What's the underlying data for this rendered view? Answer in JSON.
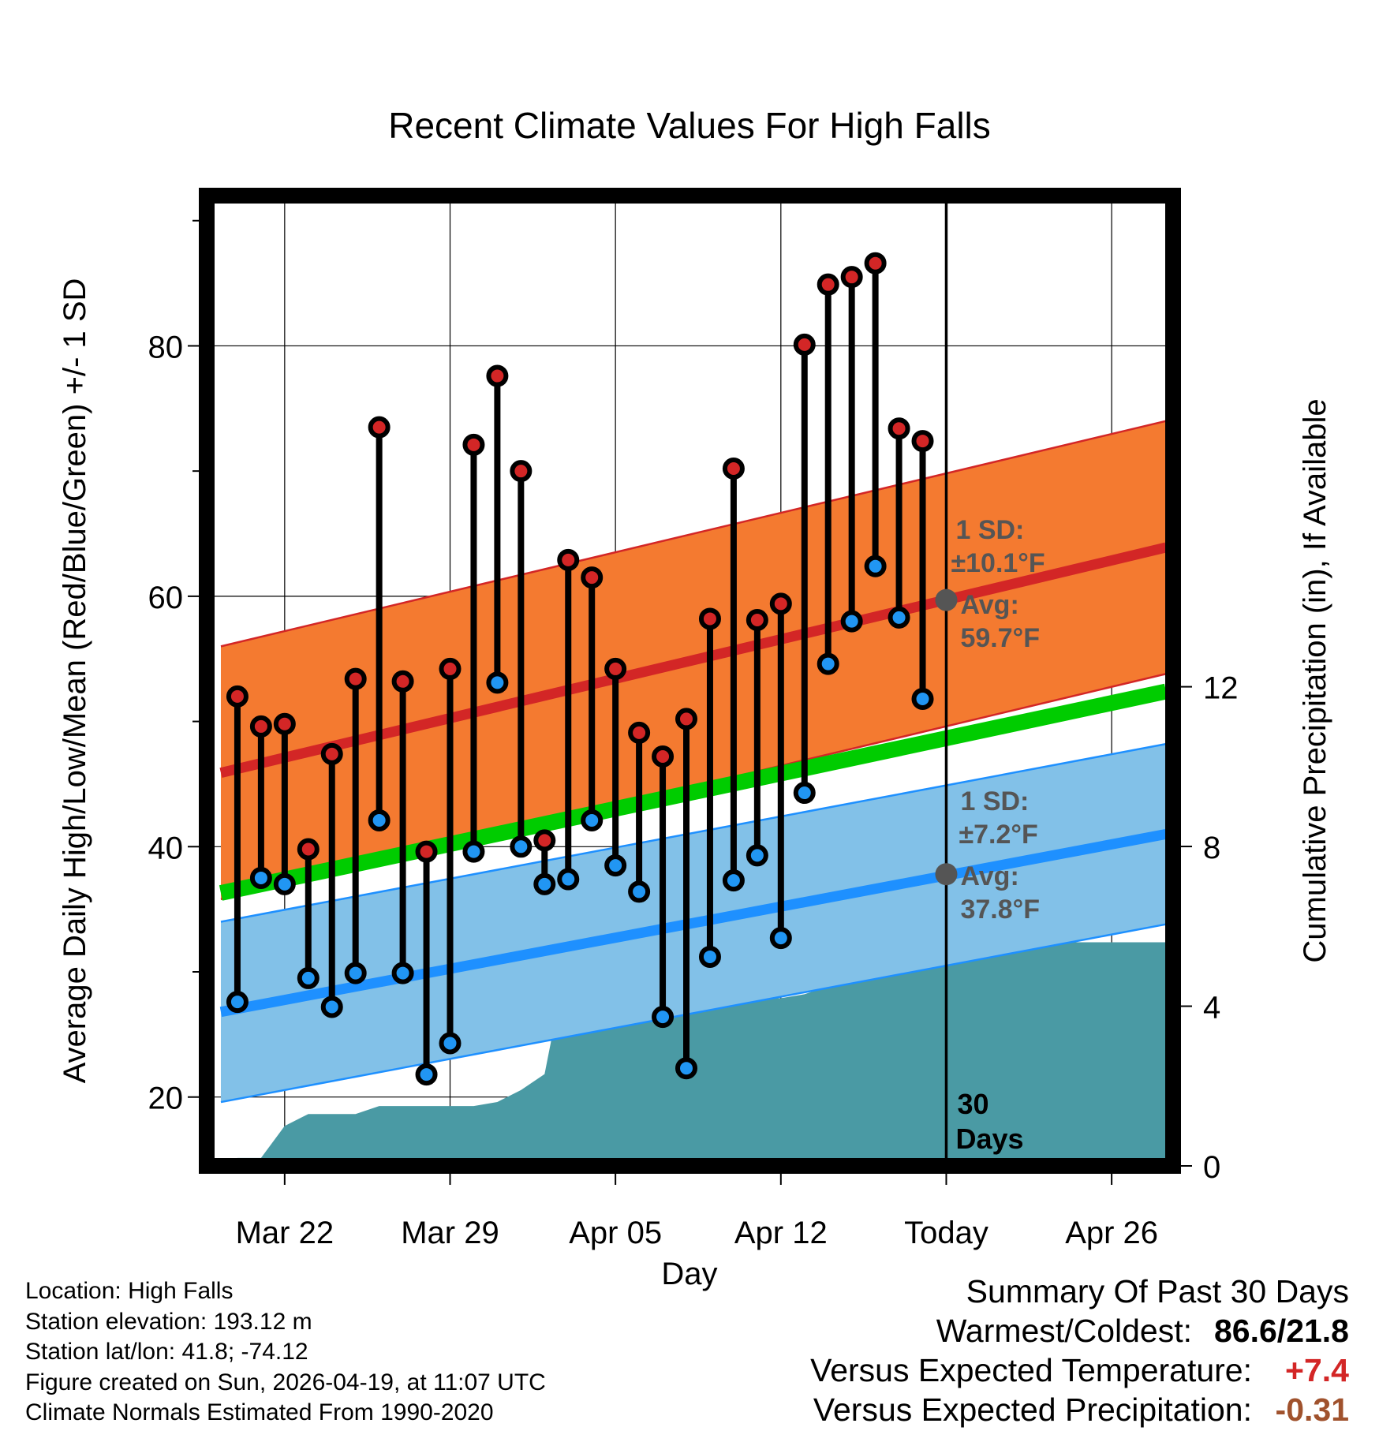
{
  "title": "Recent Climate Values For High Falls",
  "colors": {
    "high_marker": "#d32626",
    "low_marker": "#2196f3",
    "high_band": "#f47a30",
    "high_band_edge": "#d32626",
    "high_mean": "#d32626",
    "low_band": "#82c1e8",
    "low_band_edge": "#1e90ff",
    "low_mean": "#1e90ff",
    "mean_line": "#00cc00",
    "precip": "#4a9aa4",
    "annotation": "#555555",
    "warm_value": "#d32626",
    "precip_value": "#a0522d"
  },
  "chart_data": {
    "type": "line",
    "title": "Recent Climate Values For High Falls",
    "xlabel": "Day",
    "ylabel": "Average Daily High/Low/Mean (Red/Blue/Green) +/- 1 SD",
    "y2label": "Cumulative Precipitation (in), If Available",
    "ylim": [
      14.5,
      92
    ],
    "y2lim": [
      0,
      24.3
    ],
    "yticks": [
      20,
      40,
      60,
      80
    ],
    "y2ticks": [
      0,
      4,
      8,
      12
    ],
    "xlim": [
      -3.3,
      37.6
    ],
    "x_tick_days": [
      0,
      7,
      14,
      21,
      28,
      35
    ],
    "x_tick_labels": [
      "Mar 22",
      "Mar 29",
      "Apr 05",
      "Apr 12",
      "Today",
      "Apr 26"
    ],
    "today_day": 28,
    "today_label_days": "30",
    "today_label_unit": "Days",
    "daily": {
      "day": [
        -2,
        -1,
        0,
        1,
        2,
        3,
        4,
        5,
        6,
        7,
        8,
        9,
        10,
        11,
        12,
        13,
        14,
        15,
        16,
        17,
        18,
        19,
        20,
        21,
        22,
        23,
        24,
        25,
        26,
        27
      ],
      "high": [
        52.0,
        49.6,
        49.8,
        39.8,
        47.4,
        53.4,
        73.5,
        53.2,
        39.6,
        54.2,
        72.1,
        77.6,
        70.0,
        40.5,
        62.9,
        61.5,
        54.2,
        49.1,
        47.2,
        50.2,
        58.2,
        70.2,
        58.1,
        59.4,
        80.1,
        84.9,
        85.5,
        86.6,
        73.4,
        72.4
      ],
      "low": [
        27.6,
        37.5,
        37.0,
        29.5,
        27.2,
        29.9,
        42.1,
        29.9,
        21.8,
        24.3,
        39.6,
        53.1,
        40.0,
        37.0,
        37.4,
        42.1,
        38.5,
        36.4,
        26.4,
        22.3,
        31.2,
        37.3,
        39.3,
        32.7,
        44.3,
        54.6,
        58.0,
        62.4,
        58.3,
        51.8
      ]
    },
    "normals": {
      "day": [
        -2.7,
        37.3
      ],
      "high_mean": [
        45.9,
        63.9
      ],
      "high_sd": 10.1,
      "low_mean": [
        26.8,
        41.0
      ],
      "low_sd": 7.2,
      "mean": [
        36.3,
        52.4
      ]
    },
    "precip": {
      "day": [
        -2.7,
        -2.0,
        -1.3,
        -1.0,
        0.0,
        1.0,
        2.0,
        3.0,
        4.0,
        5.0,
        6.0,
        7.0,
        8.0,
        9.0,
        10.0,
        11.0,
        11.5,
        12.0,
        13.0,
        14.0,
        15.0,
        16.0,
        17.0,
        18.0,
        19.0,
        20.0,
        21.0,
        22.0,
        23.0,
        24.0,
        25.0,
        26.0,
        27.0,
        28.0,
        37.3
      ],
      "cum": [
        0.0,
        0.2,
        0.2,
        0.2,
        1.0,
        1.3,
        1.3,
        1.3,
        1.5,
        1.5,
        1.5,
        1.5,
        1.5,
        1.6,
        1.9,
        2.3,
        3.8,
        3.9,
        3.9,
        4.2,
        4.2,
        4.2,
        4.2,
        4.2,
        4.2,
        4.2,
        4.2,
        4.3,
        4.5,
        4.8,
        5.1,
        5.6,
        5.6,
        5.6,
        5.6
      ]
    },
    "annotations": {
      "high": {
        "sd_label": "1 SD:",
        "sd_value": "±10.1°F",
        "avg_label": "Avg:",
        "avg_value": "59.7°F",
        "avg": 59.7
      },
      "low": {
        "sd_label": "1 SD:",
        "sd_value": "±7.2°F",
        "avg_label": "Avg:",
        "avg_value": "37.8°F",
        "avg": 37.8
      }
    }
  },
  "footer": {
    "location": "Location: High Falls",
    "elevation": "Station elevation: 193.12 m",
    "latlon": "Station lat/lon: 41.8; -74.12",
    "created": "Figure created on Sun, 2026-04-19, at 11:07 UTC",
    "normals": "Climate Normals Estimated From 1990-2020"
  },
  "summary": {
    "heading": "Summary Of Past 30 Days",
    "warm_cold_label": "Warmest/Coldest:",
    "warm_cold_value": "86.6/21.8",
    "temp_label": "Versus Expected Temperature:",
    "temp_value": "+7.4",
    "precip_label": "Versus Expected Precipitation:",
    "precip_value": "-0.31"
  }
}
